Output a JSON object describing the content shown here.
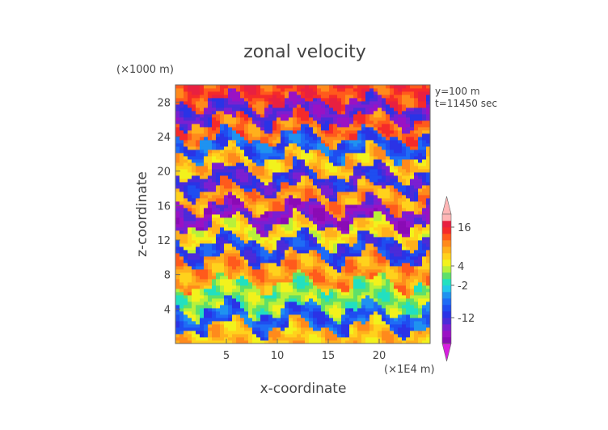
{
  "chart_data": {
    "type": "heatmap",
    "title": "zonal velocity",
    "xlabel": "x-coordinate",
    "ylabel": "z-coordinate",
    "x_unit": "(×1E4 m)",
    "y_unit": "(×1000 m)",
    "annotations": [
      "y=100 m",
      "t=11450 sec"
    ],
    "x_ticks": [
      5,
      10,
      15,
      20
    ],
    "y_ticks": [
      4,
      8,
      12,
      16,
      20,
      24,
      28
    ],
    "xlim": [
      0,
      25
    ],
    "ylim": [
      0,
      30
    ],
    "colorbar": {
      "tick_labels": [
        "16",
        "4",
        "-2",
        "-12"
      ],
      "tick_values": [
        16,
        4,
        -2,
        -12
      ],
      "levels": [
        -20,
        -18,
        -16,
        -14,
        -12,
        -10,
        -8,
        -6,
        -4,
        -2,
        0,
        2,
        4,
        6,
        8,
        10,
        12,
        14,
        16,
        18,
        20
      ],
      "colors": [
        "#8a0bb5",
        "#9a12c4",
        "#7b1fd1",
        "#4b2bd9",
        "#2a33e6",
        "#1f4df0",
        "#1f6cf5",
        "#1f92f0",
        "#22c8e8",
        "#22e0c0",
        "#5ee06a",
        "#b8f03a",
        "#f2f21c",
        "#ffd21c",
        "#ffb01c",
        "#ff8a1c",
        "#ff5a1c",
        "#f52a2a",
        "#e82040",
        "#ffb6b6"
      ],
      "underflow_color": "#d81ee0",
      "overflow_color": "#ffb6b6"
    },
    "bands": [
      {
        "z_range": [
          28,
          30
        ],
        "value": 14
      },
      {
        "z_range": [
          26,
          28
        ],
        "value": -14
      },
      {
        "z_range": [
          24,
          26
        ],
        "value": 12
      },
      {
        "z_range": [
          22,
          24
        ],
        "value": -8
      },
      {
        "z_range": [
          20,
          22
        ],
        "value": 8
      },
      {
        "z_range": [
          18,
          20
        ],
        "value": -12
      },
      {
        "z_range": [
          16,
          18
        ],
        "value": 10
      },
      {
        "z_range": [
          14,
          16
        ],
        "value": -16
      },
      {
        "z_range": [
          12,
          14
        ],
        "value": 6
      },
      {
        "z_range": [
          10,
          12
        ],
        "value": -10
      },
      {
        "z_range": [
          7,
          10
        ],
        "value": 10
      },
      {
        "z_range": [
          4,
          7
        ],
        "value": 2
      },
      {
        "z_range": [
          2,
          4
        ],
        "value": -8
      },
      {
        "z_range": [
          0,
          2
        ],
        "value": 8
      }
    ]
  }
}
